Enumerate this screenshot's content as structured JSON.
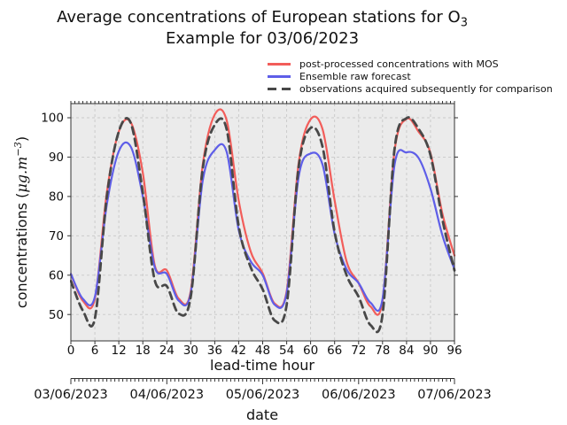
{
  "title": {
    "line1_prefix": "Average concentrations of European stations for O",
    "line1_sub": "3",
    "line2": "Example for 03/06/2023"
  },
  "legend": {
    "items": [
      {
        "label": "post-processed concentrations with MOS",
        "color": "#f25d5a",
        "style": "solid"
      },
      {
        "label": "Ensemble raw forecast",
        "color": "#5e5ee8",
        "style": "solid"
      },
      {
        "label": "observations acquired subsequently for comparison",
        "color": "#484848",
        "style": "dashed"
      }
    ]
  },
  "axes": {
    "xlabel": "lead-time hour",
    "ylabel_prefix": "concentrations (",
    "ylabel_unit": "μg.m",
    "ylabel_exponent": "−3",
    "ylabel_close": ")",
    "x_ticks": [
      0,
      6,
      12,
      18,
      24,
      30,
      36,
      42,
      48,
      54,
      60,
      66,
      72,
      78,
      84,
      90,
      96
    ],
    "y_ticks": [
      50,
      60,
      70,
      80,
      90,
      100
    ],
    "date_axis": {
      "label": "date",
      "dates": [
        "03/06/2023",
        "04/06/2023",
        "05/06/2023",
        "06/06/2023",
        "07/06/2023"
      ],
      "hours": [
        0,
        24,
        48,
        72,
        96
      ]
    }
  },
  "chart_data": {
    "type": "line",
    "title": "Average concentrations of European stations for O3 — Example for 03/06/2023",
    "xlabel": "lead-time hour",
    "ylabel": "concentrations (ug.m-3)",
    "xlim": [
      0,
      96
    ],
    "ylim": [
      43.3,
      103.6
    ],
    "grid": "dashed",
    "plot_background": "#ebebeb",
    "grid_color": "#c8c8c8",
    "spine_color": "#333333",
    "legend_position": "above-right",
    "x_hours": [
      0,
      3,
      6,
      9,
      12,
      15,
      18,
      21,
      24,
      27,
      30,
      33,
      36,
      39,
      42,
      45,
      48,
      51,
      54,
      57,
      60,
      63,
      66,
      69,
      72,
      75,
      78,
      81,
      84,
      87,
      90,
      93,
      96
    ],
    "series": [
      {
        "name": "post-processed concentrations with MOS",
        "color": "#f25d5a",
        "style": "solid",
        "width": 2.2,
        "values": [
          60.3,
          53.5,
          54,
          81,
          96.5,
          98.8,
          86,
          62.5,
          61.2,
          54,
          56,
          88,
          100.8,
          99.3,
          79,
          66,
          60.5,
          52.8,
          56,
          88.5,
          99.6,
          97,
          79,
          63.5,
          58,
          52,
          53.5,
          91.5,
          99.7,
          96.5,
          91,
          75.5,
          65
        ]
      },
      {
        "name": "Ensemble raw forecast",
        "color": "#5e5ee8",
        "style": "solid",
        "width": 2.2,
        "values": [
          60.3,
          54,
          54.5,
          78,
          91.5,
          92.6,
          80,
          62,
          60.3,
          53.5,
          55.5,
          84,
          91.8,
          91.3,
          71.5,
          63.5,
          60,
          52.5,
          55.5,
          85,
          90.9,
          88,
          70.5,
          61.5,
          58,
          53,
          54,
          88,
          91.2,
          89.8,
          82,
          70,
          61.5
        ]
      },
      {
        "name": "observations acquired subsequently for comparison",
        "color": "#484848",
        "style": "dashed",
        "width": 2.8,
        "values": [
          58.5,
          51,
          49,
          80,
          96.5,
          98.6,
          81,
          58.7,
          57.2,
          50.2,
          54.5,
          87,
          98.2,
          97,
          72.5,
          62,
          56.4,
          48.5,
          52.5,
          87.5,
          97.4,
          92.5,
          71,
          60,
          54.5,
          47.3,
          50,
          92,
          99.9,
          97.2,
          90.5,
          74,
          61.2
        ]
      }
    ]
  }
}
